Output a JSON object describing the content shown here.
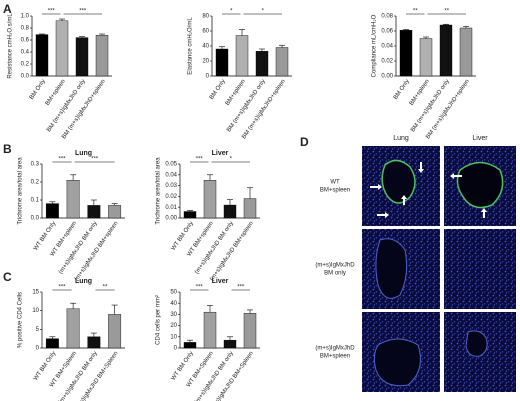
{
  "panels": {
    "letters": [
      "A",
      "B",
      "C",
      "D"
    ],
    "d_columns": [
      "Lung",
      "Liver"
    ],
    "d_rows": [
      [
        "WT",
        "BM+spleen"
      ],
      [
        "(m+s)IgMxJhD",
        "BM only"
      ],
      [
        "(m+s)IgMxJhD",
        "BM+spleen"
      ]
    ]
  },
  "chart_data": [
    {
      "type": "bar",
      "ylabel": "Resistance cmH₂O.s/mL",
      "categories": [
        "BM Only",
        "BM+spleen",
        "BM (m+s)IgMxJhD only",
        "BM (m+s)IgMxJhD+spleen"
      ],
      "values": [
        0.69,
        0.92,
        0.64,
        0.68
      ],
      "errors": [
        0.01,
        0.03,
        0.015,
        0.02
      ],
      "colors": [
        "#000000",
        "#b0b0b0",
        "#111111",
        "#9a9a9a"
      ],
      "ylim": [
        0,
        1
      ],
      "yticks": [
        {
          "value": 0,
          "label": "0.0"
        },
        0.2,
        0.4,
        0.6,
        0.8,
        {
          "value": 1,
          "label": "1.0"
        }
      ],
      "annotations": [
        "***",
        "***"
      ]
    },
    {
      "type": "bar",
      "ylabel": "Elastance cmH₂O/mL",
      "categories": [
        "BM Only",
        "BM+spleen",
        "BM (m+s)IgMxJhD only",
        "BM (m+s)IgMxJhD+spleen"
      ],
      "values": [
        36,
        54,
        33,
        38
      ],
      "errors": [
        3,
        8,
        3,
        3
      ],
      "colors": [
        "#000000",
        "#b0b0b0",
        "#111111",
        "#9a9a9a"
      ],
      "ylim": [
        0,
        80
      ],
      "yticks": [
        0,
        20,
        40,
        60,
        80
      ],
      "annotations": [
        "*",
        "*"
      ]
    },
    {
      "type": "bar",
      "ylabel": "Compliance mL/cmH₂O",
      "categories": [
        "BM Only",
        "BM+spleen",
        "BM (m+s)IgMxJhD only",
        "BM (m+s)IgMxJhD+spleen"
      ],
      "values": [
        0.061,
        0.05,
        0.068,
        0.064
      ],
      "errors": [
        0.001,
        0.002,
        0.001,
        0.002
      ],
      "colors": [
        "#000000",
        "#b0b0b0",
        "#111111",
        "#9a9a9a"
      ],
      "ylim": [
        0,
        0.08
      ],
      "yticks": [
        {
          "value": 0,
          "label": "0.00"
        },
        0.02,
        0.04,
        0.06,
        0.08
      ],
      "annotations": [
        "**",
        "**"
      ]
    },
    {
      "type": "bar",
      "title": "Lung",
      "ylabel": "Trichrome area/total area",
      "categories": [
        "WT BM Only",
        "WT BM+spleen",
        "(m+s)IgMxJhD BM only",
        "(m+s)IgMxJhD BM+spleen"
      ],
      "values": [
        0.08,
        0.21,
        0.07,
        0.07
      ],
      "errors": [
        0.01,
        0.03,
        0.03,
        0.01
      ],
      "colors": [
        "#000000",
        "#a0a0a0",
        "#111111",
        "#9a9a9a"
      ],
      "ylim": [
        0,
        0.3
      ],
      "yticks": [
        {
          "value": 0,
          "label": "0.0"
        },
        0.1,
        0.2,
        0.3
      ],
      "annotations": [
        "***",
        "***"
      ]
    },
    {
      "type": "bar",
      "title": "Liver",
      "ylabel": "Trichrome area/total area",
      "categories": [
        "WT BM Only",
        "WT BM+spleen",
        "(m+s)IgMxJhD BM only",
        "(m+s)IgMxJhD BM+spleen"
      ],
      "values": [
        0.006,
        0.035,
        0.012,
        0.018
      ],
      "errors": [
        0.001,
        0.005,
        0.005,
        0.01
      ],
      "colors": [
        "#000000",
        "#a0a0a0",
        "#111111",
        "#9a9a9a"
      ],
      "ylim": [
        0,
        0.05
      ],
      "yticks": [
        {
          "value": 0,
          "label": "0.00"
        },
        0.01,
        0.02,
        0.03,
        0.04,
        0.05
      ],
      "annotations": [
        "***",
        "*"
      ]
    },
    {
      "type": "bar",
      "title": "Lung",
      "ylabel": "% positive CD4 Cells",
      "categories": [
        "WT BM Only",
        "WT BM+Spleen",
        "(m+s)IgMxJhD BM only",
        "(m+s)IgMxJhD BM+Spleen"
      ],
      "values": [
        2.5,
        10.5,
        3,
        9
      ],
      "errors": [
        0.5,
        1.5,
        1,
        2.5
      ],
      "colors": [
        "#000000",
        "#a0a0a0",
        "#111111",
        "#9a9a9a"
      ],
      "ylim": [
        0,
        15
      ],
      "yticks": [
        0,
        5,
        10,
        15
      ],
      "annotations": [
        "***",
        "**"
      ]
    },
    {
      "type": "bar",
      "title": "Liver",
      "ylabel": "CD4 cells per mm²",
      "categories": [
        "WT BM Only",
        "WT BM+Spleen",
        "(m+s)IgMxJhD BM only",
        "(m+s)IgMxJhD BM+Spleen"
      ],
      "values": [
        5,
        32,
        7,
        31
      ],
      "errors": [
        2,
        6,
        3,
        3
      ],
      "colors": [
        "#000000",
        "#a0a0a0",
        "#111111",
        "#9a9a9a"
      ],
      "ylim": [
        0,
        50
      ],
      "yticks": [
        0,
        10,
        20,
        30,
        40,
        50
      ],
      "annotations": [
        "***",
        "***"
      ]
    }
  ]
}
